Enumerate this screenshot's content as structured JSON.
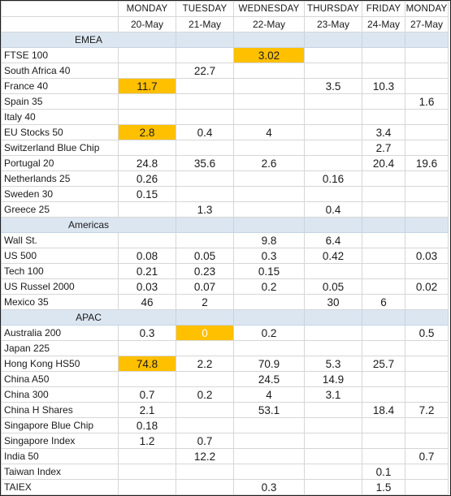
{
  "header": {
    "days": [
      "MONDAY",
      "TUESDAY",
      "WEDNESDAY",
      "THURSDAY",
      "FRIDAY",
      "MONDAY"
    ],
    "dates": [
      "20-May",
      "21-May",
      "22-May",
      "23-May",
      "24-May",
      "27-May"
    ]
  },
  "highlight_color": "#ffc000",
  "region_color": "#dce6f1",
  "sections": [
    {
      "region": "EMEA",
      "rows": [
        {
          "name": "FTSE 100",
          "values": [
            "",
            "",
            "3.02",
            "",
            "",
            ""
          ],
          "highlight": [
            2
          ]
        },
        {
          "name": "South Africa 40",
          "values": [
            "",
            "22.7",
            "",
            "",
            "",
            ""
          ],
          "highlight": []
        },
        {
          "name": "France 40",
          "values": [
            "11.7",
            "",
            "",
            "3.5",
            "10.3",
            ""
          ],
          "highlight": [
            0
          ]
        },
        {
          "name": "Spain 35",
          "values": [
            "",
            "",
            "",
            "",
            "",
            "1.6"
          ],
          "highlight": []
        },
        {
          "name": "Italy 40",
          "values": [
            "",
            "",
            "",
            "",
            "",
            ""
          ],
          "highlight": []
        },
        {
          "name": "EU Stocks 50",
          "values": [
            "2.8",
            "0.4",
            "4",
            "",
            "3.4",
            ""
          ],
          "highlight": [
            0
          ]
        },
        {
          "name": "Switzerland Blue Chip",
          "values": [
            "",
            "",
            "",
            "",
            "2.7",
            ""
          ],
          "highlight": []
        },
        {
          "name": "Portugal 20",
          "values": [
            "24.8",
            "35.6",
            "2.6",
            "",
            "20.4",
            "19.6"
          ],
          "highlight": []
        },
        {
          "name": "Netherlands 25",
          "values": [
            "0.26",
            "",
            "",
            "0.16",
            "",
            ""
          ],
          "highlight": []
        },
        {
          "name": "Sweden 30",
          "values": [
            "0.15",
            "",
            "",
            "",
            "",
            ""
          ],
          "highlight": []
        },
        {
          "name": "Greece 25",
          "values": [
            "",
            "1.3",
            "",
            "0.4",
            "",
            ""
          ],
          "highlight": []
        }
      ]
    },
    {
      "region": "Americas",
      "rows": [
        {
          "name": "Wall St.",
          "values": [
            "",
            "",
            "9.8",
            "6.4",
            "",
            ""
          ],
          "highlight": []
        },
        {
          "name": "US 500",
          "values": [
            "0.08",
            "0.05",
            "0.3",
            "0.42",
            "",
            "0.03"
          ],
          "highlight": []
        },
        {
          "name": "Tech 100",
          "values": [
            "0.21",
            "0.23",
            "0.15",
            "",
            "",
            ""
          ],
          "highlight": []
        },
        {
          "name": "US Russel 2000",
          "values": [
            "0.03",
            "0.07",
            "0.2",
            "0.05",
            "",
            "0.02"
          ],
          "highlight": []
        },
        {
          "name": "Mexico 35",
          "values": [
            "46",
            "2",
            "",
            "30",
            "6",
            ""
          ],
          "highlight": []
        }
      ]
    },
    {
      "region": "APAC",
      "rows": [
        {
          "name": "Australia 200",
          "values": [
            "0.3",
            "0",
            "0.2",
            "",
            "",
            "0.5"
          ],
          "highlight": [
            1
          ],
          "light_text": [
            1
          ]
        },
        {
          "name": "Japan 225",
          "values": [
            "",
            "",
            "",
            "",
            "",
            ""
          ],
          "highlight": []
        },
        {
          "name": "Hong Kong HS50",
          "values": [
            "74.8",
            "2.2",
            "70.9",
            "5.3",
            "25.7",
            ""
          ],
          "highlight": [
            0
          ]
        },
        {
          "name": "China A50",
          "values": [
            "",
            "",
            "24.5",
            "14.9",
            "",
            ""
          ],
          "highlight": []
        },
        {
          "name": "China 300",
          "values": [
            "0.7",
            "0.2",
            "4",
            "3.1",
            "",
            ""
          ],
          "highlight": []
        },
        {
          "name": "China H Shares",
          "values": [
            "2.1",
            "",
            "53.1",
            "",
            "18.4",
            "7.2"
          ],
          "highlight": []
        },
        {
          "name": "Singapore Blue Chip",
          "values": [
            "0.18",
            "",
            "",
            "",
            "",
            ""
          ],
          "highlight": []
        },
        {
          "name": "Singapore Index",
          "values": [
            "1.2",
            "0.7",
            "",
            "",
            "",
            ""
          ],
          "highlight": []
        },
        {
          "name": "India 50",
          "values": [
            "",
            "12.2",
            "",
            "",
            "",
            "0.7"
          ],
          "highlight": []
        },
        {
          "name": "Taiwan Index",
          "values": [
            "",
            "",
            "",
            "",
            "0.1",
            ""
          ],
          "highlight": []
        },
        {
          "name": "TAIEX",
          "values": [
            "",
            "",
            "0.3",
            "",
            "1.5",
            ""
          ],
          "highlight": []
        }
      ]
    }
  ]
}
